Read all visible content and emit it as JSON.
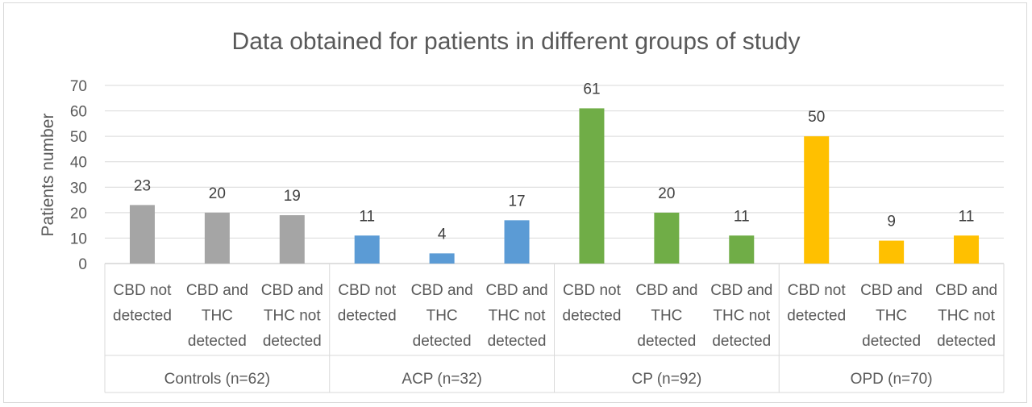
{
  "chart_data": {
    "type": "bar",
    "title": "Data obtained for patients in different groups of study",
    "xlabel": "",
    "ylabel": "Patients number",
    "ylim": [
      0,
      70
    ],
    "ytick_step": 10,
    "grid": true,
    "legend": "none",
    "data_labels": true,
    "groups": [
      {
        "label": "Controls (n=62)",
        "color": "#a5a5a5",
        "categories": [
          {
            "lines": [
              "CBD not",
              "detected"
            ],
            "value": 23
          },
          {
            "lines": [
              "CBD and",
              "THC",
              "detected"
            ],
            "value": 20
          },
          {
            "lines": [
              "CBD and",
              "THC not",
              "detected"
            ],
            "value": 19
          }
        ]
      },
      {
        "label": "ACP (n=32)",
        "color": "#5b9bd5",
        "categories": [
          {
            "lines": [
              "CBD not",
              "detected"
            ],
            "value": 11
          },
          {
            "lines": [
              "CBD and",
              "THC",
              "detected"
            ],
            "value": 4
          },
          {
            "lines": [
              "CBD and",
              "THC not",
              "detected"
            ],
            "value": 17
          }
        ]
      },
      {
        "label": "CP (n=92)",
        "color": "#70ad47",
        "categories": [
          {
            "lines": [
              "CBD not",
              "detected"
            ],
            "value": 61
          },
          {
            "lines": [
              "CBD and",
              "THC",
              "detected"
            ],
            "value": 20
          },
          {
            "lines": [
              "CBD and",
              "THC not",
              "detected"
            ],
            "value": 11
          }
        ]
      },
      {
        "label": "OPD (n=70)",
        "color": "#ffc000",
        "categories": [
          {
            "lines": [
              "CBD not",
              "detected"
            ],
            "value": 50
          },
          {
            "lines": [
              "CBD and",
              "THC",
              "detected"
            ],
            "value": 9
          },
          {
            "lines": [
              "CBD and",
              "THC not",
              "detected"
            ],
            "value": 11
          }
        ]
      }
    ]
  }
}
